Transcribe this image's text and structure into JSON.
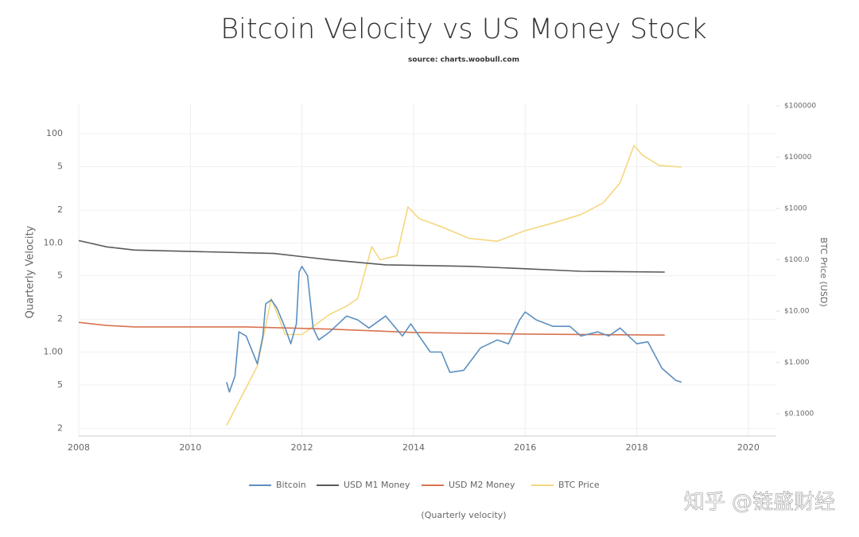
{
  "chart_data": {
    "type": "line",
    "title": "Bitcoin Velocity vs US Money Stock",
    "subtitle": "source: charts.woobull.com",
    "y_label": "Quarterly Velocity",
    "y2_label": "BTC Price (USD)",
    "x_label": "(Quarterly velocity)",
    "watermark": "知乎 @链盛财经",
    "yscale": "log",
    "y2scale": "log",
    "grid": true,
    "legend": "bottom",
    "xlim": [
      2008,
      2020.5
    ],
    "xticks": [
      2008,
      2010,
      2012,
      2014,
      2016,
      2018,
      2020
    ],
    "ylim": [
      0.17,
      190
    ],
    "yticks": [
      100,
      {
        "value": 50,
        "label": "5"
      },
      {
        "value": 20,
        "label": "2"
      },
      {
        "value": 10,
        "label": "10.0"
      },
      5,
      2,
      {
        "value": 1,
        "label": "1.00"
      },
      {
        "value": 0.5,
        "label": "5"
      },
      {
        "value": 0.2,
        "label": "2"
      }
    ],
    "y2lim": [
      0.037,
      111000
    ],
    "y2ticks": [
      {
        "value": 100000,
        "label": "$100000"
      },
      {
        "value": 10000,
        "label": "$10000"
      },
      {
        "value": 1000,
        "label": "$1000"
      },
      {
        "value": 100,
        "label": "$100.0"
      },
      {
        "value": 10,
        "label": "$10.00"
      },
      {
        "value": 1,
        "label": "$1.000"
      },
      {
        "value": 0.1,
        "label": "$0.1000"
      }
    ],
    "series": [
      {
        "name": "Bitcoin",
        "color": "#5b8fc0",
        "x": [
          2010.65,
          2010.7,
          2010.8,
          2010.87,
          2011.0,
          2011.2,
          2011.3,
          2011.35,
          2011.45,
          2011.55,
          2011.7,
          2011.8,
          2011.9,
          2011.95,
          2012.0,
          2012.1,
          2012.2,
          2012.3,
          2012.5,
          2012.8,
          2013.0,
          2013.2,
          2013.5,
          2013.8,
          2013.95,
          2014.1,
          2014.3,
          2014.5,
          2014.65,
          2014.9,
          2015.2,
          2015.5,
          2015.7,
          2015.9,
          2016.0,
          2016.2,
          2016.5,
          2016.8,
          2017.0,
          2017.3,
          2017.5,
          2017.7,
          2018.0,
          2018.2,
          2018.45,
          2018.7,
          2018.8
        ],
        "values": [
          0.53,
          0.43,
          0.6,
          1.53,
          1.4,
          0.78,
          1.4,
          2.76,
          3.0,
          2.54,
          1.66,
          1.19,
          1.81,
          5.4,
          6.1,
          5.0,
          1.66,
          1.29,
          1.53,
          2.14,
          1.97,
          1.66,
          2.14,
          1.4,
          1.81,
          1.4,
          1.0,
          1.0,
          0.65,
          0.68,
          1.09,
          1.29,
          1.19,
          1.97,
          2.33,
          1.97,
          1.72,
          1.72,
          1.4,
          1.53,
          1.4,
          1.66,
          1.19,
          1.24,
          0.71,
          0.55,
          0.53
        ]
      },
      {
        "name": "USD M1 Money",
        "color": "#5a5a5a",
        "x": [
          2008,
          2008.5,
          2009,
          2011.5,
          2012.5,
          2013.5,
          2015,
          2016,
          2017,
          2018.5
        ],
        "values": [
          10.5,
          9.2,
          8.6,
          8.0,
          7.0,
          6.3,
          6.1,
          5.8,
          5.5,
          5.4
        ]
      },
      {
        "name": "USD M2 Money",
        "color": "#d9724f",
        "x": [
          2008,
          2008.5,
          2009,
          2011,
          2012.5,
          2014,
          2016,
          2018.5
        ],
        "values": [
          1.87,
          1.75,
          1.7,
          1.7,
          1.62,
          1.51,
          1.46,
          1.43
        ]
      },
      {
        "name": "BTC Price",
        "color": "#f5d77f",
        "axis": "y2",
        "x": [
          2010.65,
          2010.9,
          2011.2,
          2011.45,
          2011.7,
          2012.0,
          2012.5,
          2012.8,
          2013.0,
          2013.25,
          2013.4,
          2013.7,
          2013.9,
          2014.1,
          2014.5,
          2015.0,
          2015.5,
          2016.0,
          2016.5,
          2017.0,
          2017.4,
          2017.7,
          2017.95,
          2018.1,
          2018.4,
          2018.8
        ],
        "values": [
          0.059,
          0.2,
          0.85,
          17.7,
          3.5,
          3.5,
          8.7,
          12.5,
          17.7,
          180,
          100,
          120,
          1070,
          630,
          440,
          260,
          230,
          370,
          520,
          760,
          1290,
          3150,
          16800,
          11000,
          6900,
          6400
        ]
      }
    ]
  }
}
